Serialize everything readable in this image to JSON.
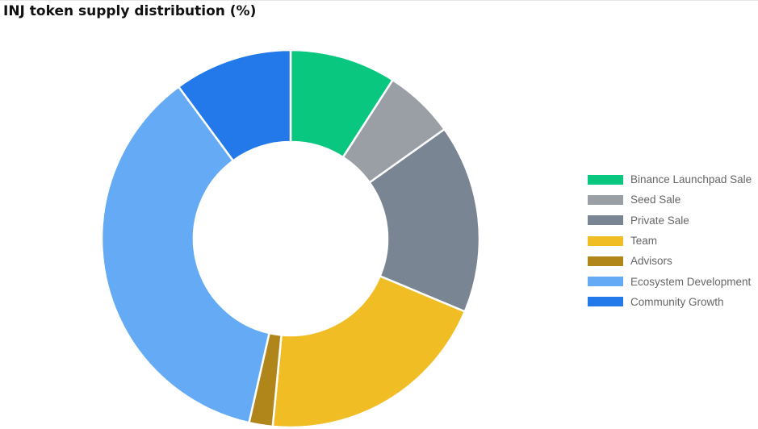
{
  "chart_data": {
    "type": "pie",
    "variant": "donut",
    "title": "INJ token supply distribution (%)",
    "categories": [
      "Binance Launchpad Sale",
      "Seed Sale",
      "Private Sale",
      "Team",
      "Advisors",
      "Ecosystem Development",
      "Community Growth"
    ],
    "values": [
      9,
      6,
      16,
      20,
      2,
      36,
      10
    ],
    "colors": [
      "#0ac77f",
      "#9a9fa6",
      "#7a8594",
      "#f0bd24",
      "#b0861a",
      "#64aaf5",
      "#2479ea"
    ],
    "legend_position": "right",
    "start_angle_deg": 0,
    "direction": "clockwise"
  }
}
